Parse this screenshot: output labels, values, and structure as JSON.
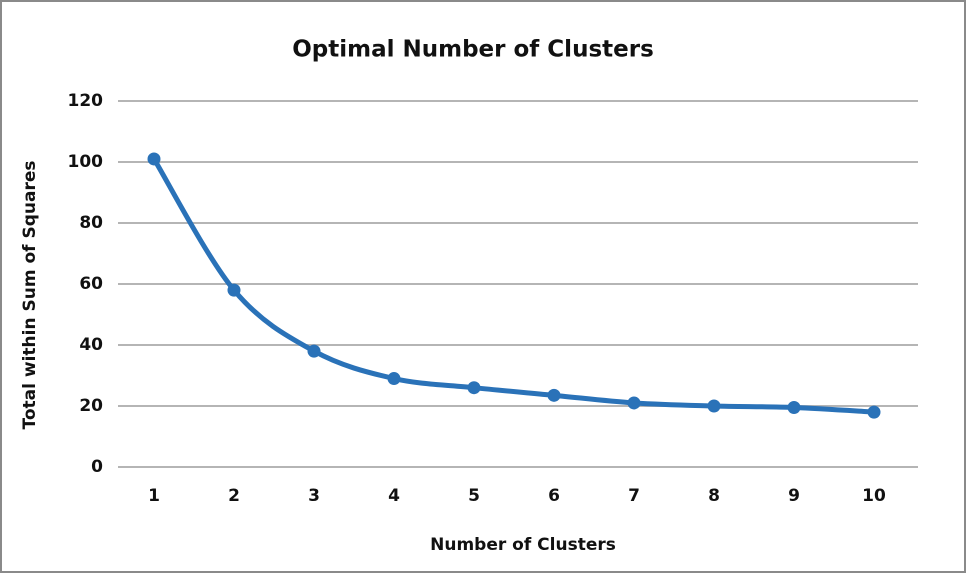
{
  "chart_data": {
    "type": "line",
    "title": "Optimal Number of Clusters",
    "x_label": "Number of Clusters",
    "y_label": "Total within Sum of Squares",
    "categories": [
      "1",
      "2",
      "3",
      "4",
      "5",
      "6",
      "7",
      "8",
      "9",
      "10"
    ],
    "values": [
      101,
      58,
      38,
      29,
      26,
      23.5,
      21,
      20,
      19.5,
      18
    ],
    "color": "#2a72b8",
    "ylim": [
      0,
      120
    ],
    "yticks": [
      0,
      20,
      40,
      60,
      80,
      100,
      120
    ],
    "grid": true
  }
}
